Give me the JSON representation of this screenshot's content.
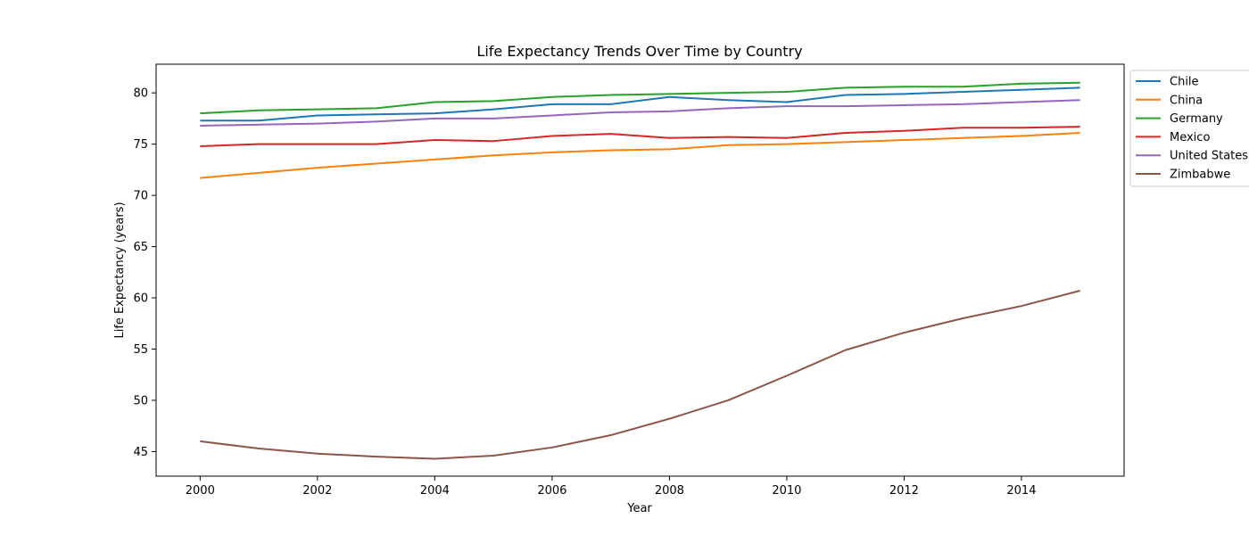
{
  "chart_data": {
    "type": "line",
    "title": "Life Expectancy Trends Over Time by Country",
    "xlabel": "Year",
    "ylabel": "Life Expectancy (years)",
    "x": [
      2000,
      2001,
      2002,
      2003,
      2004,
      2005,
      2006,
      2007,
      2008,
      2009,
      2010,
      2011,
      2012,
      2013,
      2014,
      2015
    ],
    "xlim": [
      1999.25,
      2015.75
    ],
    "ylim": [
      42.6,
      82.8
    ],
    "xticks": [
      2000,
      2002,
      2004,
      2006,
      2008,
      2010,
      2012,
      2014
    ],
    "yticks": [
      45,
      50,
      55,
      60,
      65,
      70,
      75,
      80
    ],
    "grid": false,
    "legend_position": "outside-right-top",
    "series": [
      {
        "name": "Chile",
        "color": "#1f77b4",
        "values": [
          77.3,
          77.3,
          77.8,
          77.9,
          78.0,
          78.4,
          78.9,
          78.9,
          79.6,
          79.3,
          79.1,
          79.8,
          79.9,
          80.1,
          80.3,
          80.5
        ]
      },
      {
        "name": "China",
        "color": "#ff7f0e",
        "values": [
          71.7,
          72.2,
          72.7,
          73.1,
          73.5,
          73.9,
          74.2,
          74.4,
          74.5,
          74.9,
          75.0,
          75.2,
          75.4,
          75.6,
          75.8,
          76.1
        ]
      },
      {
        "name": "Germany",
        "color": "#2ca02c",
        "values": [
          78.0,
          78.3,
          78.4,
          78.5,
          79.1,
          79.2,
          79.6,
          79.8,
          79.9,
          80.0,
          80.1,
          80.5,
          80.6,
          80.6,
          80.9,
          81.0
        ]
      },
      {
        "name": "Mexico",
        "color": "#d62728",
        "values": [
          74.8,
          75.0,
          75.0,
          75.0,
          75.4,
          75.3,
          75.8,
          76.0,
          75.6,
          75.7,
          75.6,
          76.1,
          76.3,
          76.6,
          76.6,
          76.7
        ]
      },
      {
        "name": "United States",
        "color": "#9467bd",
        "values": [
          76.8,
          76.9,
          77.0,
          77.2,
          77.5,
          77.5,
          77.8,
          78.1,
          78.2,
          78.5,
          78.7,
          78.7,
          78.8,
          78.9,
          79.1,
          79.3
        ]
      },
      {
        "name": "Zimbabwe",
        "color": "#8c564b",
        "values": [
          46.0,
          45.3,
          44.8,
          44.5,
          44.3,
          44.6,
          45.4,
          46.6,
          48.2,
          50.0,
          52.4,
          54.9,
          56.6,
          58.0,
          59.2,
          60.7
        ]
      }
    ]
  }
}
